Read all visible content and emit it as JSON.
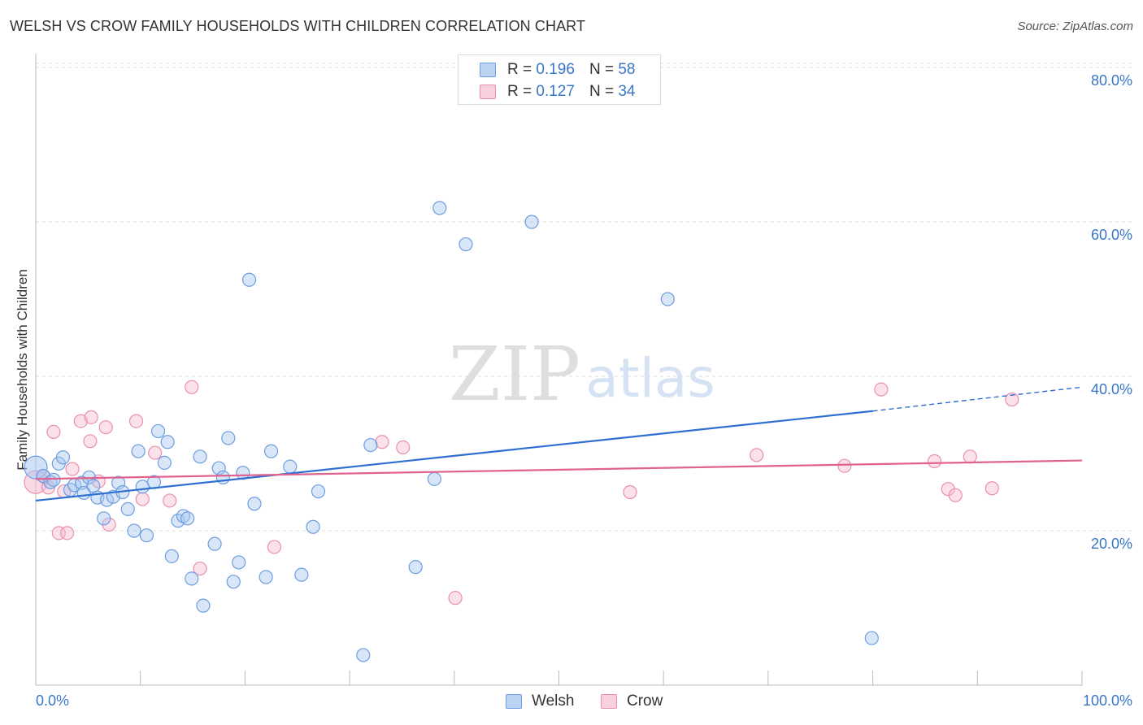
{
  "header": {
    "title": "WELSH VS CROW FAMILY HOUSEHOLDS WITH CHILDREN CORRELATION CHART",
    "source": "Source: ZipAtlas.com"
  },
  "watermark": {
    "zip": "ZIP",
    "atlas": "atlas"
  },
  "legend_top": {
    "welsh": {
      "r_label": "R =",
      "r_value": "0.196",
      "n_label": "N =",
      "n_value": "58"
    },
    "crow": {
      "r_label": "R =",
      "r_value": "0.127",
      "n_label": "N =",
      "n_value": "34"
    }
  },
  "legend_bottom": {
    "welsh": "Welsh",
    "crow": "Crow"
  },
  "colors": {
    "welsh_fill": "#a9c8f0",
    "welsh_stroke": "#6d9ee0",
    "welsh_line": "#2e6fd1",
    "crow_fill": "#f6bcd0",
    "crow_stroke": "#ea8fae",
    "crow_line": "#e0638f",
    "axis_text": "#3a76c8",
    "grid": "#dddddd"
  },
  "chart_data": {
    "type": "scatter",
    "title": "WELSH VS CROW FAMILY HOUSEHOLDS WITH CHILDREN CORRELATION CHART",
    "xlabel": "",
    "ylabel": "Family Households with Children",
    "xlim": [
      0,
      100
    ],
    "ylim": [
      0,
      84
    ],
    "x_tick_labels": [
      {
        "value": 0,
        "label": "0.0%"
      },
      {
        "value": 100,
        "label": "100.0%"
      }
    ],
    "y_tick_labels": [
      {
        "value": 20,
        "label": "20.0%"
      },
      {
        "value": 40,
        "label": "40.0%"
      },
      {
        "value": 60,
        "label": "60.0%"
      },
      {
        "value": 80,
        "label": "80.0%"
      }
    ],
    "grid": "horizontal dashed",
    "legend_position": "bottom",
    "series": [
      {
        "name": "Welsh",
        "points": [
          [
            0,
            28.2
          ],
          [
            0.7,
            27.1
          ],
          [
            1.4,
            26.3
          ],
          [
            1.7,
            26.6
          ],
          [
            2.2,
            28.7
          ],
          [
            2.6,
            29.5
          ],
          [
            3.3,
            25.3
          ],
          [
            3.7,
            25.9
          ],
          [
            4.4,
            26.2
          ],
          [
            4.6,
            24.9
          ],
          [
            5.1,
            26.9
          ],
          [
            5.5,
            25.8
          ],
          [
            5.9,
            24.3
          ],
          [
            6.5,
            21.6
          ],
          [
            6.8,
            24.0
          ],
          [
            7.4,
            24.4
          ],
          [
            7.9,
            26.2
          ],
          [
            8.3,
            25.0
          ],
          [
            8.8,
            22.8
          ],
          [
            9.4,
            20.0
          ],
          [
            9.8,
            30.3
          ],
          [
            10.2,
            25.7
          ],
          [
            10.6,
            19.4
          ],
          [
            11.3,
            26.3
          ],
          [
            11.7,
            32.9
          ],
          [
            12.3,
            28.8
          ],
          [
            12.6,
            31.5
          ],
          [
            13.0,
            16.7
          ],
          [
            13.6,
            21.3
          ],
          [
            14.1,
            21.9
          ],
          [
            14.5,
            21.6
          ],
          [
            14.9,
            13.8
          ],
          [
            15.7,
            29.6
          ],
          [
            16.0,
            10.3
          ],
          [
            17.1,
            18.3
          ],
          [
            17.5,
            28.1
          ],
          [
            17.9,
            26.9
          ],
          [
            18.4,
            32.0
          ],
          [
            18.9,
            13.4
          ],
          [
            19.4,
            15.9
          ],
          [
            19.8,
            27.5
          ],
          [
            20.4,
            52.5
          ],
          [
            20.9,
            23.5
          ],
          [
            22.0,
            14.0
          ],
          [
            22.5,
            30.3
          ],
          [
            24.3,
            28.3
          ],
          [
            25.4,
            14.3
          ],
          [
            26.5,
            20.5
          ],
          [
            27.0,
            25.1
          ],
          [
            31.3,
            3.9
          ],
          [
            32.0,
            31.1
          ],
          [
            36.3,
            15.3
          ],
          [
            38.1,
            26.7
          ],
          [
            38.6,
            61.8
          ],
          [
            41.1,
            57.1
          ],
          [
            47.4,
            60.0
          ],
          [
            60.4,
            50.0
          ],
          [
            79.9,
            6.1
          ]
        ],
        "trend": {
          "x_start": 0,
          "y_start": 23.9,
          "x_solid_end": 80.0,
          "y_solid_end": 35.5,
          "x_end": 100,
          "y_end": 38.6
        }
      },
      {
        "name": "Crow",
        "points": [
          [
            0,
            26.3
          ],
          [
            1.2,
            25.6
          ],
          [
            1.7,
            32.8
          ],
          [
            2.2,
            19.7
          ],
          [
            2.7,
            25.1
          ],
          [
            3.0,
            19.7
          ],
          [
            3.5,
            28.0
          ],
          [
            4.3,
            34.2
          ],
          [
            5.2,
            31.6
          ],
          [
            5.3,
            34.7
          ],
          [
            6.0,
            26.4
          ],
          [
            6.7,
            33.4
          ],
          [
            7.0,
            20.8
          ],
          [
            9.6,
            34.2
          ],
          [
            10.2,
            24.1
          ],
          [
            11.4,
            30.1
          ],
          [
            12.8,
            23.9
          ],
          [
            14.9,
            38.6
          ],
          [
            15.7,
            15.1
          ],
          [
            22.8,
            17.9
          ],
          [
            33.1,
            31.5
          ],
          [
            35.1,
            30.8
          ],
          [
            40.1,
            11.3
          ],
          [
            56.8,
            25.0
          ],
          [
            68.9,
            29.8
          ],
          [
            77.3,
            28.4
          ],
          [
            80.8,
            38.3
          ],
          [
            85.9,
            29.0
          ],
          [
            87.2,
            25.4
          ],
          [
            87.9,
            24.6
          ],
          [
            89.3,
            29.6
          ],
          [
            91.4,
            25.5
          ],
          [
            93.3,
            37.0
          ],
          [
            0.8,
            27.0
          ]
        ],
        "trend": {
          "x_start": 0,
          "y_start": 26.7,
          "x_end": 100,
          "y_end": 29.1
        }
      }
    ]
  }
}
